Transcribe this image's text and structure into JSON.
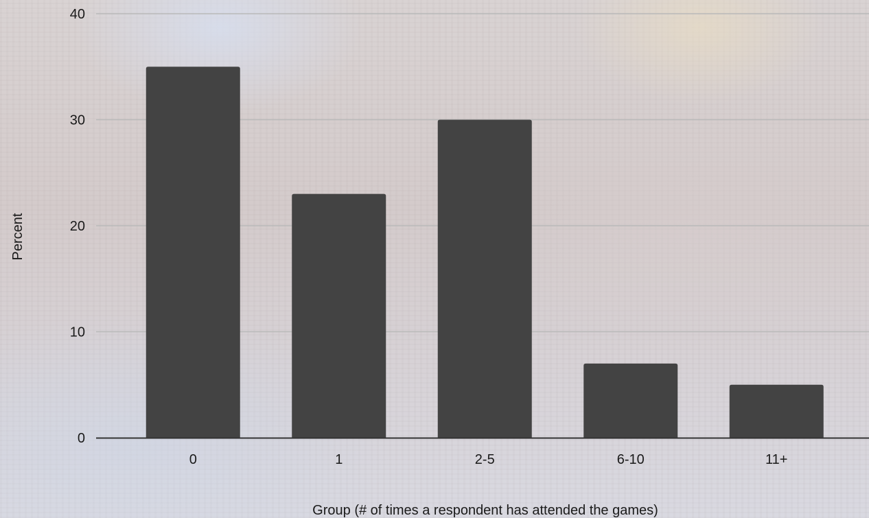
{
  "chart_data": {
    "type": "bar",
    "title": "",
    "xlabel": "Group (# of times a respondent has attended the games)",
    "ylabel": "Percent",
    "categories": [
      "0",
      "1",
      "2-5",
      "6-10",
      "11+"
    ],
    "values": [
      35,
      23,
      30,
      7,
      5
    ],
    "ylim": [
      0,
      40
    ],
    "yticks": [
      "0",
      "10",
      "20",
      "30",
      "40"
    ],
    "grid": true,
    "bar_color": "#434343",
    "grid_color": "#b9b9b9",
    "axis_color": "#333333"
  }
}
